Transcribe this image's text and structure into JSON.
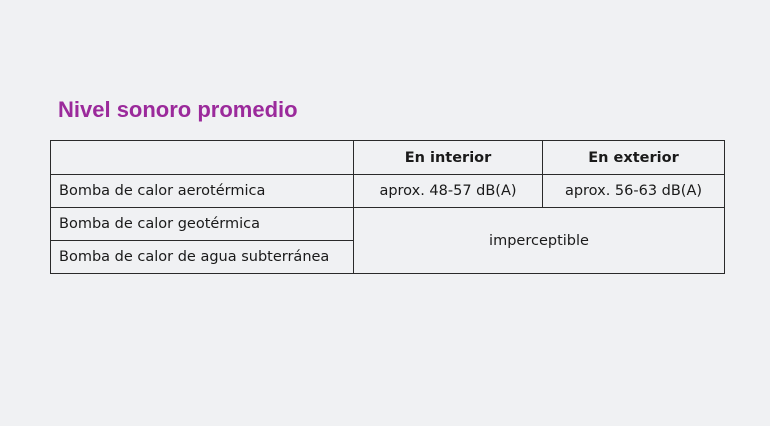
{
  "title": "Nivel sonoro promedio",
  "accent_color": "#9b2a9b",
  "table": {
    "headers": [
      "",
      "En interior",
      "En exterior"
    ],
    "rows": [
      {
        "label": "Bomba de calor aerotérmica",
        "interior": "aprox. 48-57 dB(A)",
        "exterior": "aprox. 56-63 dB(A)"
      },
      {
        "label": "Bomba de calor geotérmica"
      },
      {
        "label": "Bomba de calor de agua subterránea"
      }
    ],
    "merged_value": "imperceptible"
  }
}
